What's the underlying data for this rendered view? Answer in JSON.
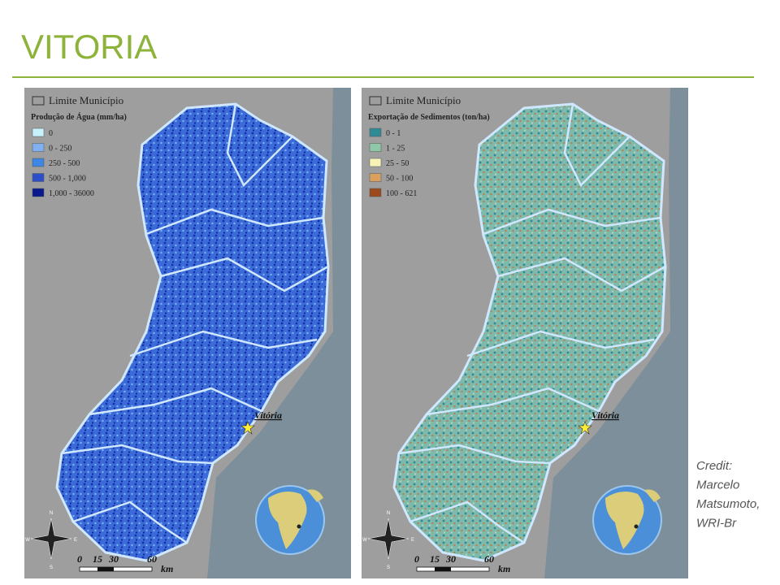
{
  "title": "VITORIA",
  "maps": [
    {
      "boundary_label": "Limite Município",
      "legend_title": "Produção de Água (mm/ha)",
      "legend": [
        {
          "label": "0",
          "color": "#c8f2fb"
        },
        {
          "label": "0 - 250",
          "color": "#7fb0f0"
        },
        {
          "label": "250 - 500",
          "color": "#3d86e6"
        },
        {
          "label": "500 - 1,000",
          "color": "#2b4fc9"
        },
        {
          "label": "1,000 - 36000",
          "color": "#0a1a8c"
        }
      ],
      "city": "Vitória",
      "scale": [
        "0",
        "15",
        "30",
        "60"
      ],
      "scale_unit": "km",
      "compass": [
        "N",
        "S",
        "W",
        "E"
      ]
    },
    {
      "boundary_label": "Limite Município",
      "legend_title": "Exportação de Sedimentos (ton/ha)",
      "legend": [
        {
          "label": "0 - 1",
          "color": "#2f8a96"
        },
        {
          "label": "1 - 25",
          "color": "#8fc8a8"
        },
        {
          "label": "25 - 50",
          "color": "#f6f2b8"
        },
        {
          "label": "50 - 100",
          "color": "#d9a060"
        },
        {
          "label": "100 - 621",
          "color": "#9a4a1c"
        }
      ],
      "city": "Vitória",
      "scale": [
        "0",
        "15",
        "30",
        "60"
      ],
      "scale_unit": "km",
      "compass": [
        "N",
        "S",
        "W",
        "E"
      ]
    }
  ],
  "credit": [
    "Credit:",
    "Marcelo",
    "Matsumoto,",
    "WRI-Br"
  ]
}
